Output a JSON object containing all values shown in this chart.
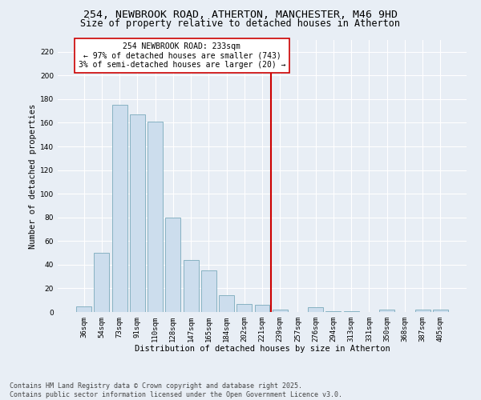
{
  "title_line1": "254, NEWBROOK ROAD, ATHERTON, MANCHESTER, M46 9HD",
  "title_line2": "Size of property relative to detached houses in Atherton",
  "xlabel": "Distribution of detached houses by size in Atherton",
  "ylabel": "Number of detached properties",
  "bin_labels": [
    "36sqm",
    "54sqm",
    "73sqm",
    "91sqm",
    "110sqm",
    "128sqm",
    "147sqm",
    "165sqm",
    "184sqm",
    "202sqm",
    "221sqm",
    "239sqm",
    "257sqm",
    "276sqm",
    "294sqm",
    "313sqm",
    "331sqm",
    "350sqm",
    "368sqm",
    "387sqm",
    "405sqm"
  ],
  "bar_heights": [
    5,
    50,
    175,
    167,
    161,
    80,
    44,
    35,
    14,
    7,
    6,
    2,
    0,
    4,
    1,
    1,
    0,
    2,
    0,
    2,
    2
  ],
  "bar_color": "#ccdded",
  "bar_edge_color": "#7aaabb",
  "vline_x_index": 11,
  "vline_color": "#cc0000",
  "annotation_text": "254 NEWBROOK ROAD: 233sqm\n← 97% of detached houses are smaller (743)\n3% of semi-detached houses are larger (20) →",
  "annotation_box_color": "#ffffff",
  "annotation_box_edge": "#cc0000",
  "ylim": [
    0,
    230
  ],
  "yticks": [
    0,
    20,
    40,
    60,
    80,
    100,
    120,
    140,
    160,
    180,
    200,
    220
  ],
  "background_color": "#e8eef5",
  "grid_color": "#ffffff",
  "footer_line1": "Contains HM Land Registry data © Crown copyright and database right 2025.",
  "footer_line2": "Contains public sector information licensed under the Open Government Licence v3.0.",
  "title_fontsize": 9.5,
  "subtitle_fontsize": 8.5,
  "axis_label_fontsize": 7.5,
  "tick_label_fontsize": 6.5,
  "annotation_fontsize": 7,
  "footer_fontsize": 6
}
